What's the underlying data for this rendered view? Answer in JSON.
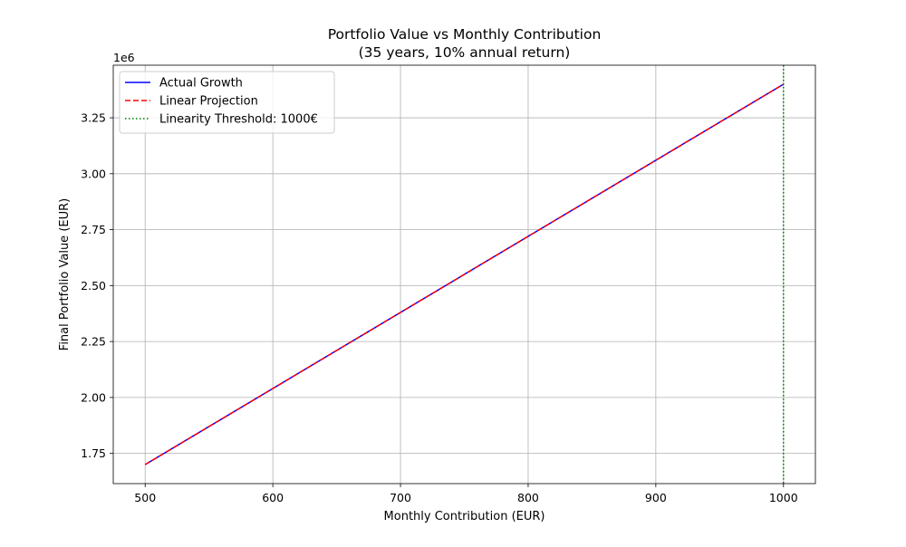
{
  "chart_data": {
    "type": "line",
    "title": "Portfolio Value vs Monthly Contribution",
    "subtitle": "(35 years, 10% annual return)",
    "xlabel": "Monthly Contribution (EUR)",
    "ylabel": "Final Portfolio Value (EUR)",
    "y_multiplier": "1e6",
    "xlim": [
      475,
      1025
    ],
    "ylim": [
      1.615,
      3.485
    ],
    "x_ticks": [
      500,
      600,
      700,
      800,
      900,
      1000
    ],
    "x_tick_labels": [
      "500",
      "600",
      "700",
      "800",
      "900",
      "1000"
    ],
    "y_ticks": [
      1.75,
      2.0,
      2.25,
      2.5,
      2.75,
      3.0,
      3.25
    ],
    "y_tick_labels": [
      "1.75",
      "2.00",
      "2.25",
      "2.50",
      "2.75",
      "3.00",
      "3.25"
    ],
    "grid": true,
    "legend_position": "top-left",
    "series": [
      {
        "name": "Actual Growth",
        "color": "#0000ff",
        "style": "solid",
        "x": [
          500,
          1000
        ],
        "y": [
          1.7,
          3.4
        ]
      },
      {
        "name": "Linear Projection",
        "color": "#ff0000",
        "style": "dashed",
        "x": [
          500,
          1000
        ],
        "y": [
          1.7,
          3.4
        ]
      }
    ],
    "vlines": [
      {
        "name": "Linearity Threshold: 1000€",
        "color": "#008000",
        "style": "dotted",
        "x": 1000
      }
    ]
  }
}
